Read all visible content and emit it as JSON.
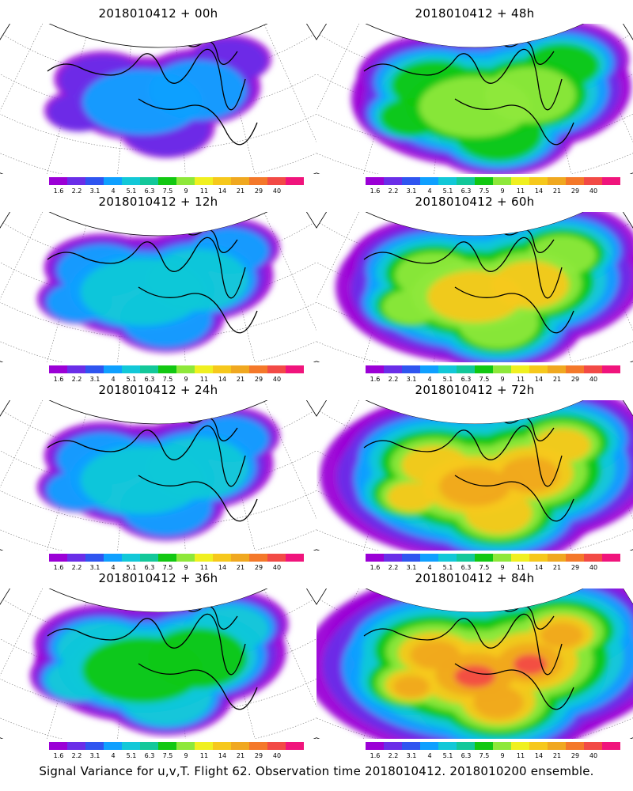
{
  "panels": [
    {
      "title": "2018010412 + 00h",
      "level": 1
    },
    {
      "title": "2018010412 + 48h",
      "level": 4
    },
    {
      "title": "2018010412 + 12h",
      "level": 2
    },
    {
      "title": "2018010412 + 60h",
      "level": 5
    },
    {
      "title": "2018010412 + 24h",
      "level": 2
    },
    {
      "title": "2018010412 + 72h",
      "level": 6
    },
    {
      "title": "2018010412 + 36h",
      "level": 3
    },
    {
      "title": "2018010412 + 84h",
      "level": 7
    }
  ],
  "colorbar": {
    "colors": [
      "#9b00d6",
      "#6a2ee8",
      "#2f55f0",
      "#0fa0ff",
      "#12c8d8",
      "#13c89a",
      "#12c812",
      "#8ee83a",
      "#f0f020",
      "#f6c81c",
      "#f0a820",
      "#f4782a",
      "#f24a46",
      "#f0147c"
    ],
    "labels": [
      "1.6",
      "2.2",
      "3.1",
      "4",
      "5.1",
      "6.3",
      "7.5",
      "9",
      "11",
      "14",
      "21",
      "29",
      "40"
    ]
  },
  "footer": "Signal Variance for u,v,T. Flight 62. Observation time 2018010412. 2018010200 ensemble."
}
